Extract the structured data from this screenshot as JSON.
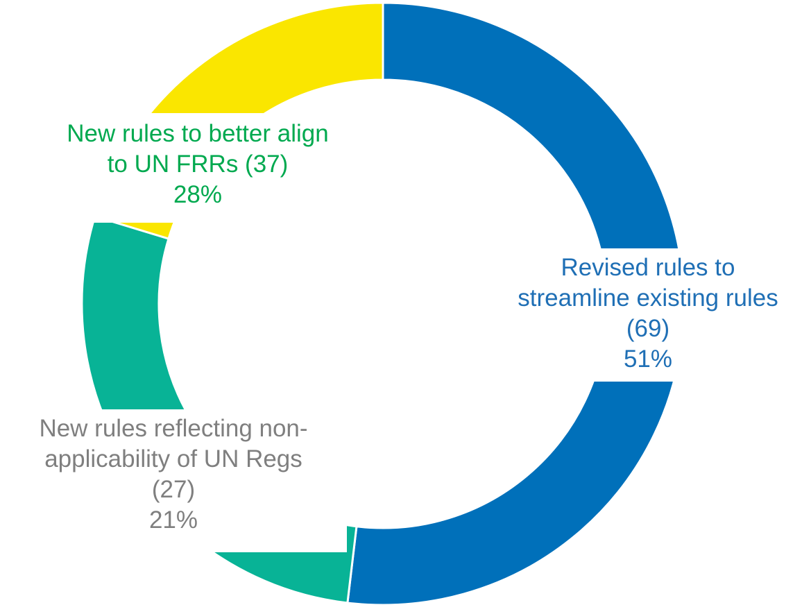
{
  "chart_data": {
    "type": "pie",
    "donut": true,
    "title": "",
    "slices": [
      {
        "label_lines": [
          "Revised rules to",
          "streamline existing rules",
          "(69)"
        ],
        "value": 69,
        "percent": "51%",
        "color": "#0070BA",
        "label_color": "#1F6FB5"
      },
      {
        "label_lines": [
          "New rules to better align",
          "to UN FRRs (37)"
        ],
        "value": 37,
        "percent": "28%",
        "color": "#08B396",
        "label_color": "#00A94F"
      },
      {
        "label_lines": [
          "New rules reflecting non-",
          "applicability of UN Regs",
          "(27)"
        ],
        "value": 27,
        "percent": "21%",
        "color": "#FAE600",
        "label_color": "#7F7F7F"
      }
    ]
  }
}
